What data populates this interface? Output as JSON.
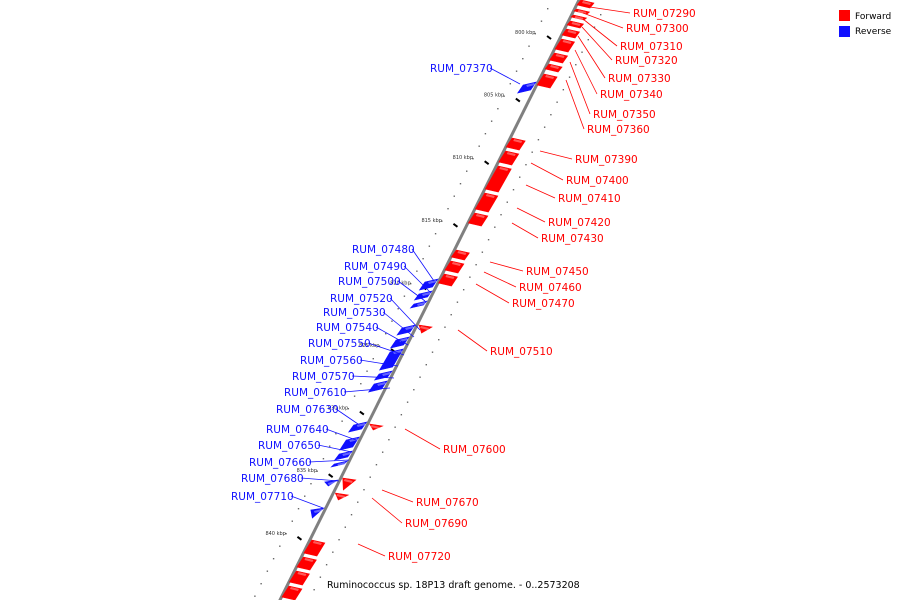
{
  "caption": "Ruminococcus sp. 18P13 draft genome. - 0..2573208",
  "colors": {
    "forward": "#ff0000",
    "reverse": "#1010ff",
    "backbone": "#808080"
  },
  "legend": [
    {
      "label": "Forward",
      "color": "#ff0000"
    },
    {
      "label": "Reverse",
      "color": "#1010ff"
    }
  ],
  "scale_ticks": [
    {
      "label": "800 kbp",
      "kbp": 800
    },
    {
      "label": "805 kbp",
      "kbp": 805
    },
    {
      "label": "810 kbp",
      "kbp": 810
    },
    {
      "label": "815 kbp",
      "kbp": 815
    },
    {
      "label": "820 kbp",
      "kbp": 820
    },
    {
      "label": "825 kbp",
      "kbp": 825
    },
    {
      "label": "830 kbp",
      "kbp": 830
    },
    {
      "label": "835 kbp",
      "kbp": 835
    },
    {
      "label": "840 kbp",
      "kbp": 840
    }
  ],
  "genes": [
    {
      "name": "RUM_07290",
      "strand": "forward"
    },
    {
      "name": "RUM_07300",
      "strand": "forward"
    },
    {
      "name": "RUM_07310",
      "strand": "forward"
    },
    {
      "name": "RUM_07320",
      "strand": "forward"
    },
    {
      "name": "RUM_07330",
      "strand": "forward"
    },
    {
      "name": "RUM_07340",
      "strand": "forward"
    },
    {
      "name": "RUM_07350",
      "strand": "forward"
    },
    {
      "name": "RUM_07360",
      "strand": "forward"
    },
    {
      "name": "RUM_07370",
      "strand": "reverse"
    },
    {
      "name": "RUM_07390",
      "strand": "forward"
    },
    {
      "name": "RUM_07400",
      "strand": "forward"
    },
    {
      "name": "RUM_07410",
      "strand": "forward"
    },
    {
      "name": "RUM_07420",
      "strand": "forward"
    },
    {
      "name": "RUM_07430",
      "strand": "forward"
    },
    {
      "name": "RUM_07450",
      "strand": "forward"
    },
    {
      "name": "RUM_07460",
      "strand": "forward"
    },
    {
      "name": "RUM_07470",
      "strand": "forward"
    },
    {
      "name": "RUM_07480",
      "strand": "reverse"
    },
    {
      "name": "RUM_07490",
      "strand": "reverse"
    },
    {
      "name": "RUM_07500",
      "strand": "reverse"
    },
    {
      "name": "RUM_07510",
      "strand": "forward"
    },
    {
      "name": "RUM_07520",
      "strand": "reverse"
    },
    {
      "name": "RUM_07530",
      "strand": "reverse"
    },
    {
      "name": "RUM_07540",
      "strand": "reverse"
    },
    {
      "name": "RUM_07550",
      "strand": "reverse"
    },
    {
      "name": "RUM_07560",
      "strand": "reverse"
    },
    {
      "name": "RUM_07570",
      "strand": "reverse"
    },
    {
      "name": "RUM_07600",
      "strand": "forward"
    },
    {
      "name": "RUM_07610",
      "strand": "reverse"
    },
    {
      "name": "RUM_07630",
      "strand": "reverse"
    },
    {
      "name": "RUM_07640",
      "strand": "reverse"
    },
    {
      "name": "RUM_07650",
      "strand": "reverse"
    },
    {
      "name": "RUM_07660",
      "strand": "reverse"
    },
    {
      "name": "RUM_07670",
      "strand": "forward"
    },
    {
      "name": "RUM_07680",
      "strand": "reverse"
    },
    {
      "name": "RUM_07690",
      "strand": "forward"
    },
    {
      "name": "RUM_07710",
      "strand": "reverse"
    },
    {
      "name": "RUM_07720",
      "strand": "forward"
    }
  ]
}
